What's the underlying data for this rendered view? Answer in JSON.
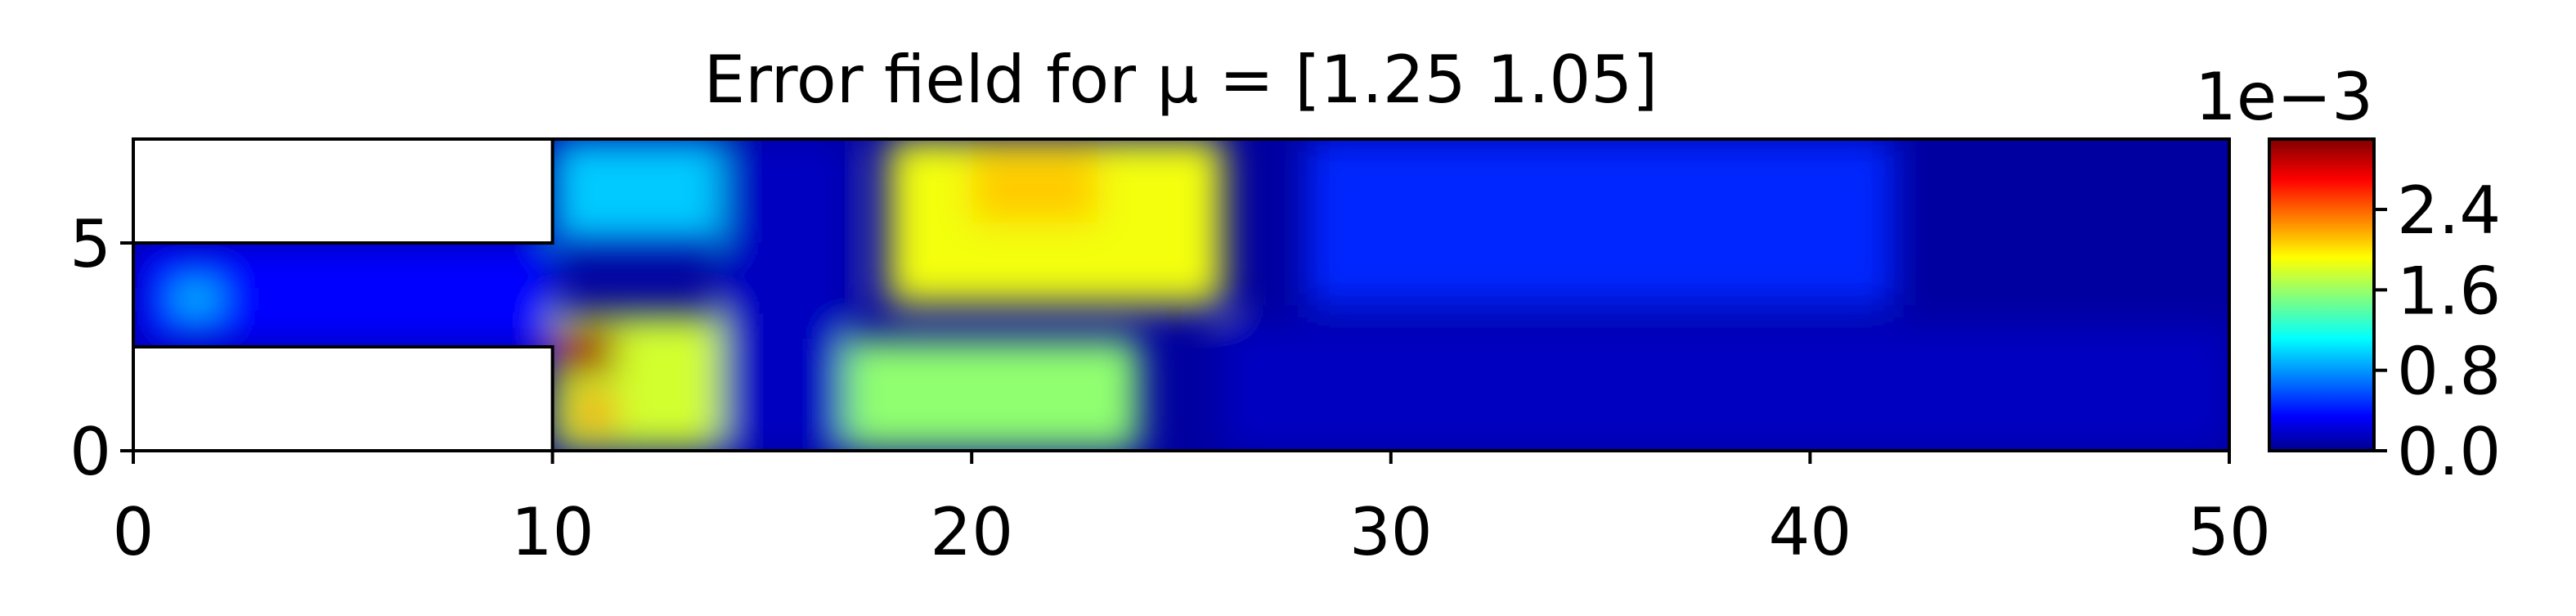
{
  "chart_data": {
    "type": "heatmap",
    "title": "Error field for μ = [1.25 1.05]",
    "xlabel": "",
    "ylabel": "",
    "xlim": [
      0,
      50
    ],
    "ylim": [
      0,
      7.5
    ],
    "x_ticks": [
      0,
      10,
      20,
      30,
      40,
      50
    ],
    "x_tick_labels": [
      "0",
      "10",
      "20",
      "30",
      "40",
      "50"
    ],
    "y_ticks": [
      0,
      5
    ],
    "y_tick_labels": [
      "0",
      "5"
    ],
    "grid": false,
    "colormap": "jet",
    "colorbar": {
      "range": [
        0.0,
        0.0031
      ],
      "offset_label": "1e−3",
      "ticks": [
        0.0,
        0.0008,
        0.0016,
        0.0024
      ],
      "tick_labels": [
        "0.0",
        "0.8",
        "1.6",
        "2.4"
      ]
    },
    "domain_voids": [
      {
        "x": [
          0,
          10
        ],
        "y": [
          5,
          7.5
        ]
      },
      {
        "x": [
          0,
          10
        ],
        "y": [
          0,
          2.5
        ]
      }
    ],
    "error_regions": [
      {
        "x": [
          0,
          10
        ],
        "y": [
          2.5,
          5
        ],
        "value": 0.0004
      },
      {
        "x": [
          1,
          2
        ],
        "y": [
          3.3,
          4.0
        ],
        "value": 0.001
      },
      {
        "x": [
          10,
          15
        ],
        "y": [
          5.0,
          7.5
        ],
        "value": 0.001
      },
      {
        "x": [
          10,
          14
        ],
        "y": [
          0,
          3.3
        ],
        "value": 0.0018
      },
      {
        "x": [
          10,
          11.5
        ],
        "y": [
          1.8,
          3.0
        ],
        "value": 0.003
      },
      {
        "x": [
          10.5,
          11.5
        ],
        "y": [
          0.6,
          1.2
        ],
        "value": 0.0026
      },
      {
        "x": [
          14,
          17
        ],
        "y": [
          0,
          7.5
        ],
        "value": 0.0002
      },
      {
        "x": [
          18,
          26
        ],
        "y": [
          3.5,
          7.5
        ],
        "value": 0.0019
      },
      {
        "x": [
          20,
          23
        ],
        "y": [
          5.5,
          7.2
        ],
        "value": 0.0021
      },
      {
        "x": [
          17,
          24
        ],
        "y": [
          0,
          2.7
        ],
        "value": 0.0016
      },
      {
        "x": [
          28,
          42
        ],
        "y": [
          3.5,
          7.5
        ],
        "value": 0.0005
      },
      {
        "x": [
          26,
          50
        ],
        "y": [
          0,
          3.0
        ],
        "value": 0.0002
      }
    ]
  }
}
